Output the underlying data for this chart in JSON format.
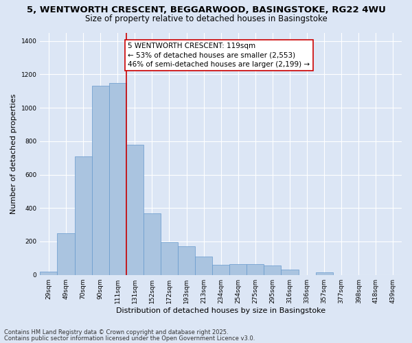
{
  "title_line1": "5, WENTWORTH CRESCENT, BEGGARWOOD, BASINGSTOKE, RG22 4WU",
  "title_line2": "Size of property relative to detached houses in Basingstoke",
  "xlabel": "Distribution of detached houses by size in Basingstoke",
  "ylabel": "Number of detached properties",
  "categories": [
    "29sqm",
    "49sqm",
    "70sqm",
    "90sqm",
    "111sqm",
    "131sqm",
    "152sqm",
    "172sqm",
    "193sqm",
    "213sqm",
    "234sqm",
    "254sqm",
    "275sqm",
    "295sqm",
    "316sqm",
    "336sqm",
    "357sqm",
    "377sqm",
    "398sqm",
    "418sqm",
    "439sqm"
  ],
  "values": [
    20,
    250,
    710,
    1130,
    1150,
    780,
    370,
    195,
    170,
    110,
    60,
    65,
    65,
    55,
    30,
    0,
    15,
    0,
    0,
    0,
    0
  ],
  "bar_color": "#aac4e0",
  "bar_edge_color": "#6699cc",
  "vline_color": "#cc0000",
  "annotation_text": "5 WENTWORTH CRESCENT: 119sqm\n← 53% of detached houses are smaller (2,553)\n46% of semi-detached houses are larger (2,199) →",
  "annotation_box_color": "#cc0000",
  "ylim": [
    0,
    1450
  ],
  "yticks": [
    0,
    200,
    400,
    600,
    800,
    1000,
    1200,
    1400
  ],
  "bg_color": "#dce6f5",
  "plot_bg_color": "#dce6f5",
  "footer_line1": "Contains HM Land Registry data © Crown copyright and database right 2025.",
  "footer_line2": "Contains public sector information licensed under the Open Government Licence v3.0.",
  "title_fontsize": 9.5,
  "subtitle_fontsize": 8.5,
  "axis_label_fontsize": 8,
  "tick_fontsize": 6.5,
  "annotation_fontsize": 7.5,
  "footer_fontsize": 6
}
